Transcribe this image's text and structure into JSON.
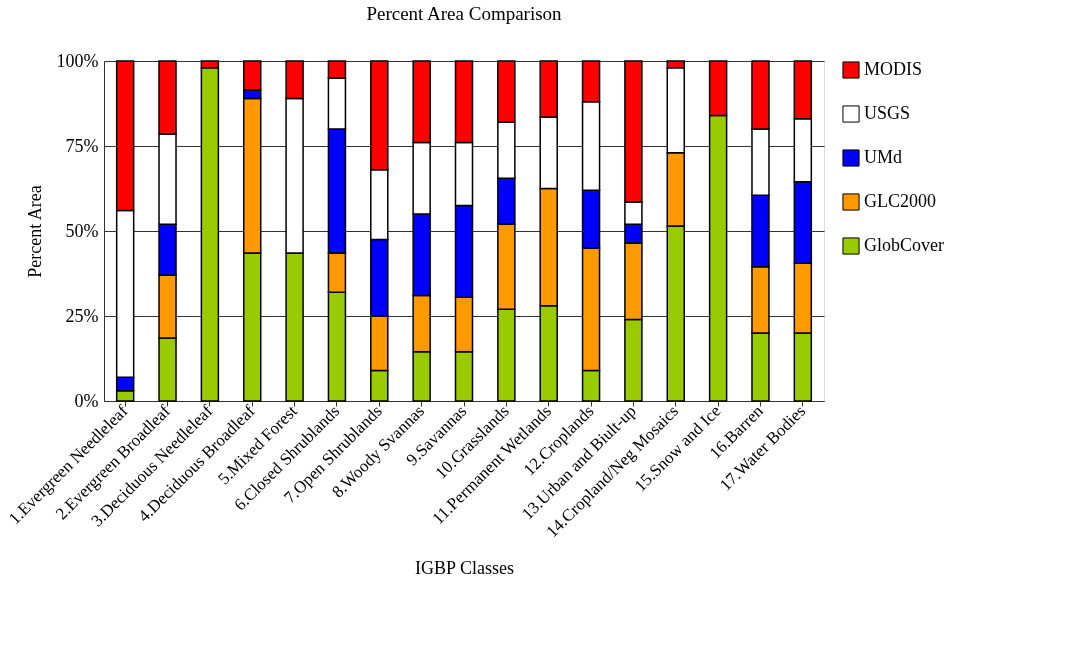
{
  "chart_data": {
    "type": "bar",
    "stacked": true,
    "title": "Percent Area Comparison",
    "xlabel": "IGBP Classes",
    "ylabel": "Percent Area",
    "categories": [
      "1.Evergreen Needleleaf",
      "2.Evergreen Broadleaf",
      "3.Deciduous Needleleaf",
      "4.Deciduous Broadleaf",
      "5.Mixed Forest",
      "6.Closed Shrublands",
      "7.Open Shrublands",
      "8.Woody Svannas",
      "9.Savannas",
      "10.Grasslands",
      "11.Permanent Wetlands",
      "12.Croplands",
      "13.Urban and Biult-up",
      "14.Cropland/Neg Mosaics",
      "15.Snow and Ice",
      "16.Barren",
      "17.Water Bodies"
    ],
    "series": [
      {
        "name": "GlobCover",
        "color": "#99cc00",
        "values": [
          3,
          18.5,
          98,
          43.5,
          43.5,
          32,
          9,
          14.5,
          14.5,
          27,
          28,
          9,
          24,
          51.5,
          84,
          20,
          20
        ]
      },
      {
        "name": "GLC2000",
        "color": "#ff9900",
        "values": [
          0,
          18.5,
          0,
          45.5,
          0,
          11.5,
          16,
          16.5,
          16,
          25,
          34.5,
          36,
          22.5,
          21.5,
          0,
          19.5,
          20.5
        ]
      },
      {
        "name": "UMd",
        "color": "#0000ff",
        "values": [
          4,
          15,
          0,
          2.5,
          0,
          36.5,
          22.5,
          24,
          27,
          13.5,
          0,
          17,
          5.5,
          0,
          0,
          21,
          24
        ]
      },
      {
        "name": "USGS",
        "color": "#ffffff",
        "values": [
          49,
          26.5,
          0,
          0,
          45.5,
          15,
          20.5,
          21,
          18.5,
          16.5,
          21,
          26,
          6.5,
          25,
          0,
          19.5,
          18.5
        ]
      },
      {
        "name": "MODIS",
        "color": "#ff0000",
        "values": [
          44,
          21.5,
          2,
          8.5,
          11,
          5,
          32,
          24,
          24,
          18,
          16.5,
          12,
          41.5,
          2,
          16,
          20,
          17
        ]
      }
    ],
    "ylim": [
      0,
      100
    ],
    "yticks": [
      {
        "value": 0,
        "label": "0%"
      },
      {
        "value": 25,
        "label": "25%"
      },
      {
        "value": 50,
        "label": "50%"
      },
      {
        "value": 75,
        "label": "75%"
      },
      {
        "value": 100,
        "label": "100%"
      }
    ],
    "grid": "y",
    "legend": "right"
  }
}
